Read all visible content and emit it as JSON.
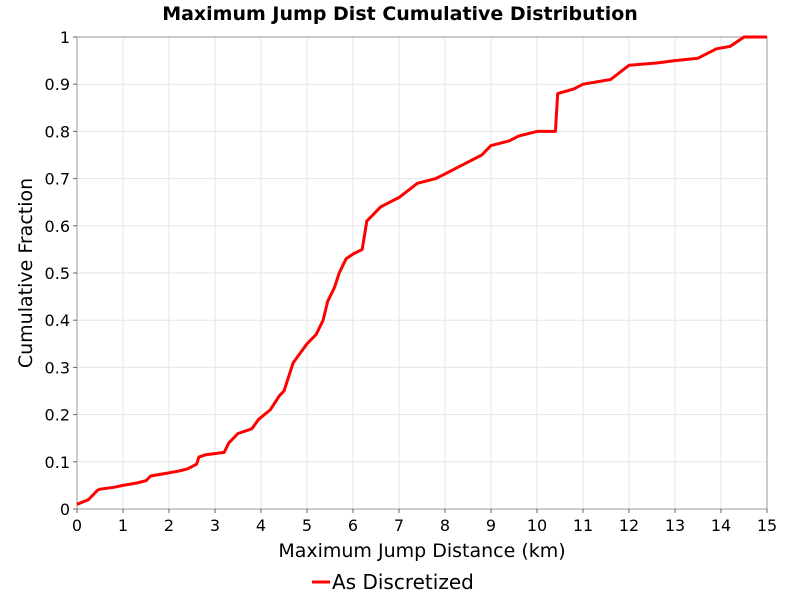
{
  "chart_data": {
    "type": "line",
    "title": "Maximum Jump Dist Cumulative Distribution",
    "xlabel": "Maximum Jump Distance (km)",
    "ylabel": "Cumulative Fraction",
    "xlim": [
      0,
      15
    ],
    "ylim": [
      0,
      1
    ],
    "x_ticks": [
      "0",
      "1",
      "2",
      "3",
      "4",
      "5",
      "6",
      "7",
      "8",
      "9",
      "10",
      "11",
      "12",
      "13",
      "14",
      "15"
    ],
    "y_ticks": [
      "0",
      "0.1",
      "0.2",
      "0.3",
      "0.4",
      "0.5",
      "0.6",
      "0.7",
      "0.8",
      "0.9",
      "1"
    ],
    "grid": true,
    "legend_position": "bottom-center",
    "colors": {
      "series": "#ff0000",
      "grid": "#e6e6e6",
      "frame": "#999999"
    },
    "series": [
      {
        "name": "As Discretized",
        "color": "#ff0000",
        "x": [
          0,
          0.25,
          0.45,
          0.5,
          0.8,
          1.0,
          1.3,
          1.5,
          1.6,
          1.9,
          2.2,
          2.4,
          2.6,
          2.65,
          2.8,
          3.2,
          3.3,
          3.5,
          3.8,
          3.95,
          4.2,
          4.4,
          4.5,
          4.6,
          4.7,
          4.85,
          5.0,
          5.2,
          5.35,
          5.45,
          5.6,
          5.7,
          5.85,
          6.0,
          6.2,
          6.3,
          6.4,
          6.6,
          6.8,
          7.0,
          7.4,
          7.8,
          8.0,
          8.4,
          8.8,
          9.0,
          9.4,
          9.6,
          10.0,
          10.4,
          10.45,
          10.8,
          11.0,
          11.6,
          12.0,
          12.6,
          13.0,
          13.5,
          13.9,
          14.2,
          14.5,
          15.0
        ],
        "y": [
          0.01,
          0.02,
          0.04,
          0.042,
          0.046,
          0.05,
          0.055,
          0.06,
          0.07,
          0.075,
          0.08,
          0.085,
          0.095,
          0.11,
          0.115,
          0.12,
          0.14,
          0.16,
          0.17,
          0.19,
          0.21,
          0.24,
          0.25,
          0.28,
          0.31,
          0.33,
          0.35,
          0.37,
          0.4,
          0.44,
          0.47,
          0.5,
          0.53,
          0.54,
          0.55,
          0.61,
          0.62,
          0.64,
          0.65,
          0.66,
          0.69,
          0.7,
          0.71,
          0.73,
          0.75,
          0.77,
          0.78,
          0.79,
          0.8,
          0.8,
          0.88,
          0.89,
          0.9,
          0.91,
          0.94,
          0.945,
          0.95,
          0.955,
          0.975,
          0.98,
          1.0,
          1.0
        ]
      }
    ]
  }
}
